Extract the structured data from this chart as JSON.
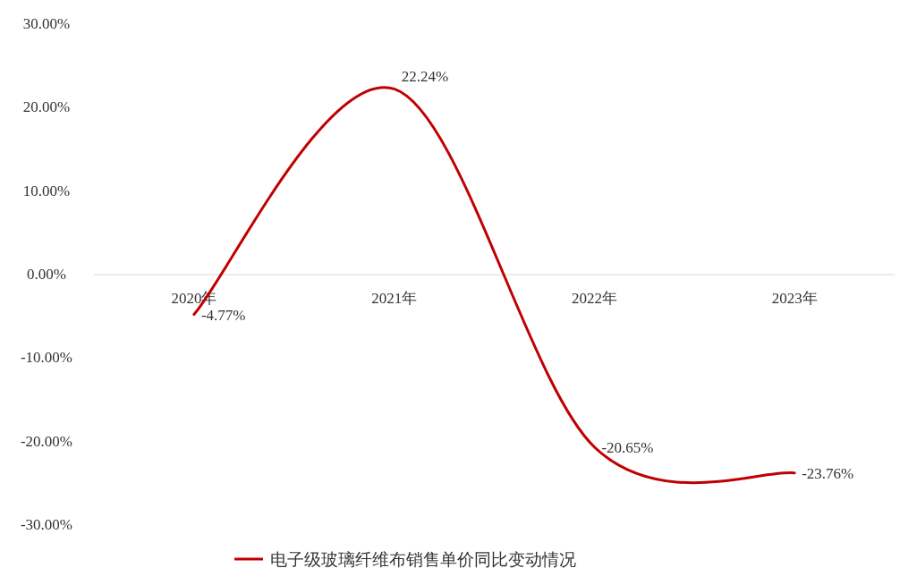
{
  "chart_data": {
    "type": "line",
    "categories": [
      "2020年",
      "2021年",
      "2022年",
      "2023年"
    ],
    "series": [
      {
        "name": "电子级玻璃纤维布销售单价同比变动情况",
        "color": "#c00000",
        "values": [
          -4.77,
          22.24,
          -20.65,
          -23.76
        ],
        "value_labels": [
          "-4.77%",
          "22.24%",
          "-20.65%",
          "-23.76%"
        ]
      }
    ],
    "ylim": [
      -30,
      30
    ],
    "yticks": [
      {
        "value": 30,
        "label": "30.00%"
      },
      {
        "value": 20,
        "label": "20.00%"
      },
      {
        "value": 10,
        "label": "10.00%"
      },
      {
        "value": 0,
        "label": "0.00%"
      },
      {
        "value": -10,
        "label": "-10.00%"
      },
      {
        "value": -20,
        "label": "-20.00%"
      },
      {
        "value": -30,
        "label": "-30.00%"
      }
    ],
    "legend": "bottom"
  }
}
